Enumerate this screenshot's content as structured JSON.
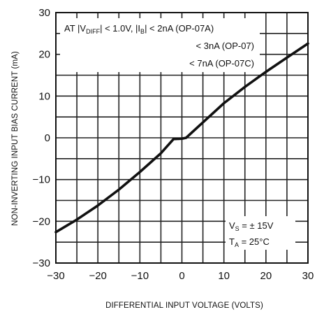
{
  "chart_data": {
    "type": "line",
    "title": "",
    "xlabel": "DIFFERENTIAL INPUT VOLTAGE (VOLTS)",
    "ylabel": "NON-INVERTING INPUT BIAS CURRENT (mA)",
    "xlim": [
      -30,
      30
    ],
    "ylim": [
      -30,
      30
    ],
    "x_ticks": [
      -30,
      -20,
      -10,
      0,
      10,
      20,
      30
    ],
    "y_ticks": [
      -30,
      -20,
      -10,
      0,
      10,
      20,
      30
    ],
    "x_tick_labels": [
      "−30",
      "−20",
      "−10",
      "0",
      "10",
      "20",
      "30"
    ],
    "y_tick_labels": [
      "−30",
      "−20",
      "−10",
      "0",
      "10",
      "20",
      "30"
    ],
    "grid": true,
    "series": [
      {
        "x": [
          -30,
          -25,
          -20,
          -15,
          -10,
          -5,
          -2,
          0,
          1,
          5,
          10,
          15,
          20,
          25,
          30
        ],
        "y": [
          -22.6,
          -19.6,
          -16.2,
          -12.4,
          -8.2,
          -3.7,
          -0.3,
          -0.2,
          0,
          3.7,
          8.3,
          12.2,
          15.8,
          19.2,
          22.6
        ]
      }
    ],
    "annotations": {
      "bias_condition": {
        "line1_prefix": "AT |V",
        "line1_sub": "DIFF",
        "line1_mid": "| < 1.0V, |I",
        "line1_sub2": "B",
        "line1_suffix": "| < 2nA (OP-07A)",
        "line2": "< 3nA (OP-07)",
        "line3": "< 7nA (OP-07C)"
      },
      "conditions": {
        "vs_main": "V",
        "vs_sub": "S",
        "vs_value": " = ± 15V",
        "ta_main": "T",
        "ta_sub": "A",
        "ta_value": " = 25°C"
      }
    }
  }
}
